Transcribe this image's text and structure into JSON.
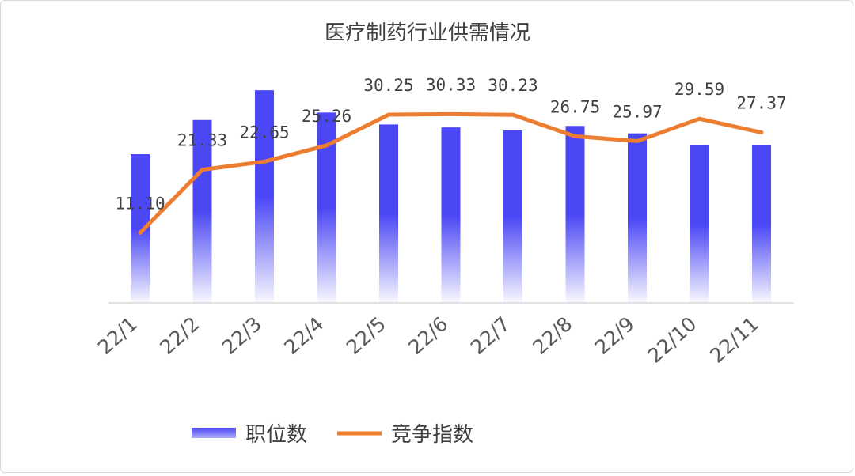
{
  "chart_data": {
    "type": "bar",
    "title": "医疗制药行业供需情况",
    "categories": [
      "22/1",
      "22/2",
      "22/3",
      "22/4",
      "22/5",
      "22/6",
      "22/7",
      "22/8",
      "22/9",
      "22/10",
      "22/11"
    ],
    "series": [
      {
        "name": "职位数",
        "type": "bar",
        "color": "#4b47f5",
        "values": [
          100,
          123,
          143,
          128,
          120,
          118,
          116,
          119,
          114,
          106,
          106
        ]
      },
      {
        "name": "竞争指数",
        "type": "line",
        "color": "#ed7d31",
        "values": [
          11.1,
          21.33,
          22.65,
          25.26,
          30.25,
          30.33,
          30.23,
          26.75,
          25.97,
          29.59,
          27.37
        ],
        "labels": [
          "11.10",
          "21.33",
          "22.65",
          "25.26",
          "30.25",
          "30.33",
          "30.23",
          "26.75",
          "25.97",
          "29.59",
          "27.37"
        ]
      }
    ],
    "legend_position": "bottom",
    "grid": false
  }
}
